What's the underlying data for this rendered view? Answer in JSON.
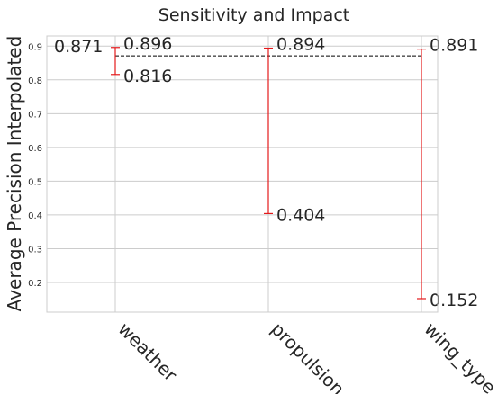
{
  "chart_data": {
    "type": "errorbar",
    "title": "Sensitivity and Impact",
    "xlabel": "",
    "ylabel": "Average Precision Interpolated",
    "categories": [
      "weather",
      "propulsion",
      "wing_type"
    ],
    "series": [
      {
        "low": [
          0.816,
          0.404,
          0.152
        ],
        "high": [
          0.896,
          0.894,
          0.891
        ]
      }
    ],
    "reference_line": {
      "value": 0.871,
      "label": "0.871",
      "style": "dashed"
    },
    "ylim": [
      0.112,
      0.93
    ],
    "yticks": [
      0.2,
      0.3,
      0.4,
      0.5,
      0.6,
      0.7,
      0.8,
      0.9
    ],
    "ytick_labels": [
      "0.2",
      "0.3",
      "0.4",
      "0.5",
      "0.6",
      "0.7",
      "0.8",
      "0.9"
    ],
    "grid": true,
    "colors": {
      "bars": "#e41a1c",
      "reference": "#000000",
      "grid": "#cccccc",
      "frame": "#cccccc"
    }
  }
}
